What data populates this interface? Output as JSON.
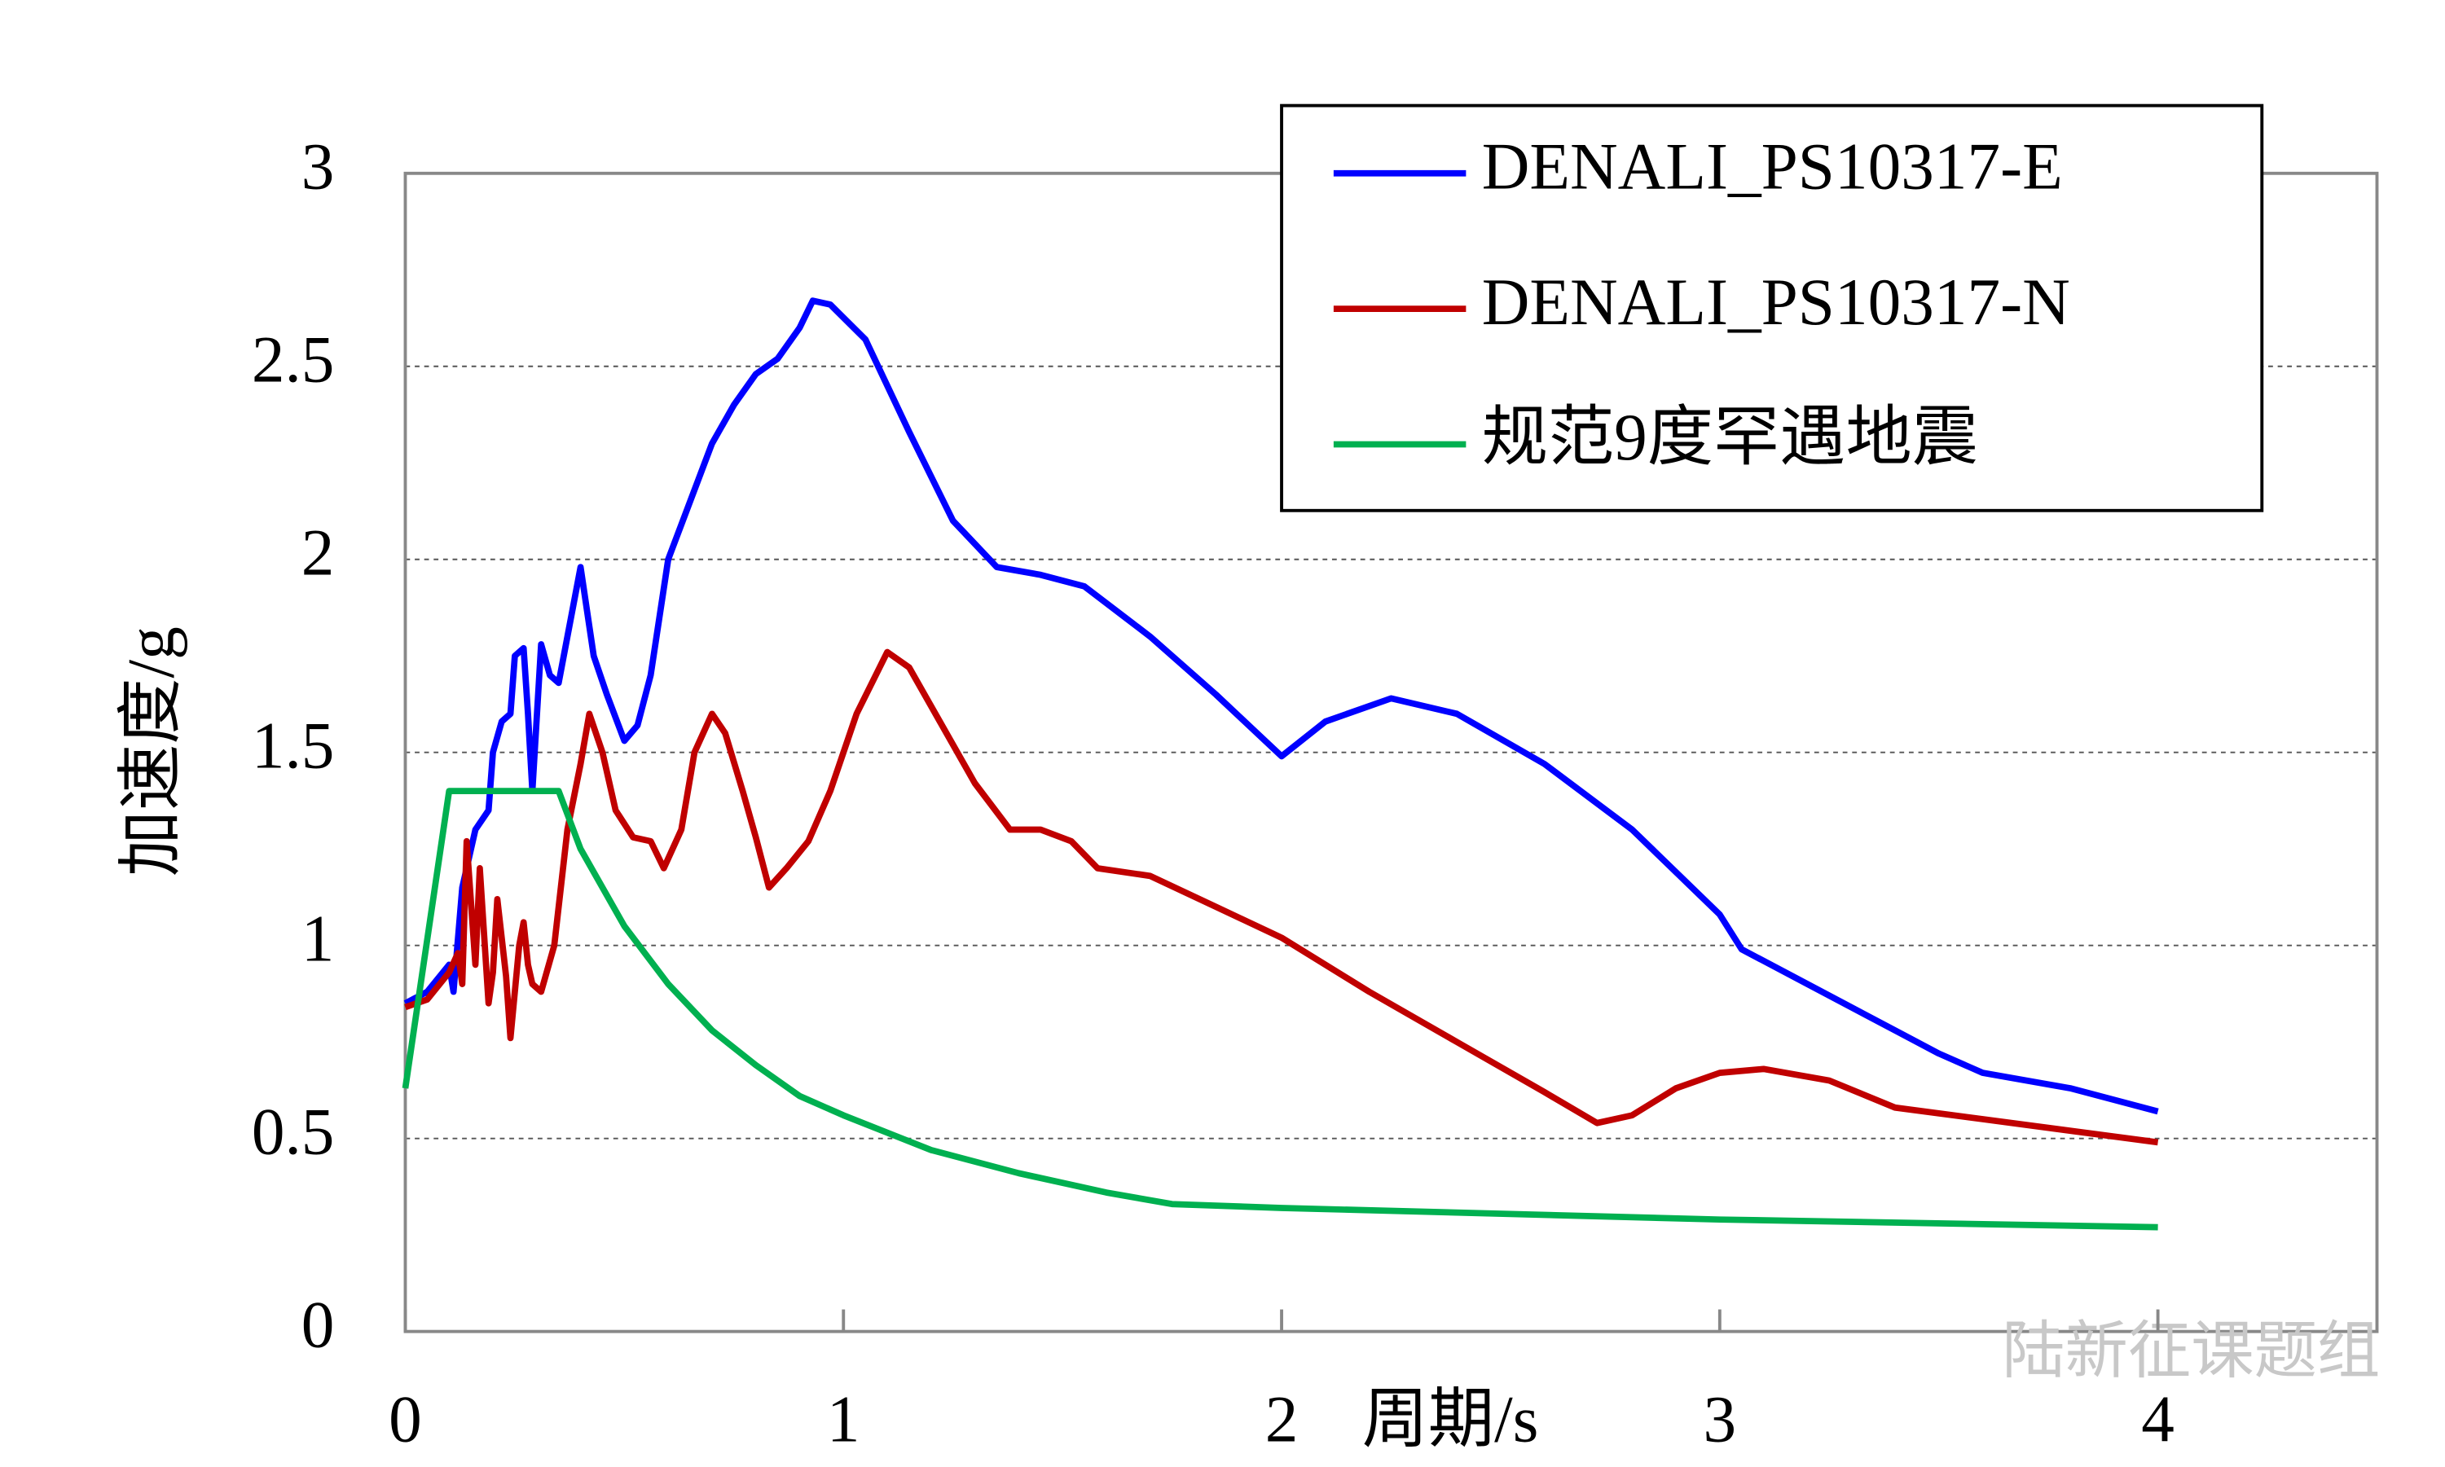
{
  "chart_data": {
    "type": "line",
    "x_label": "周期/s",
    "y_label": "加速度/g",
    "watermark": "陆新征课题组",
    "xlim": [
      0,
      4.5
    ],
    "ylim": [
      0,
      3
    ],
    "xticks": [
      0,
      1,
      2,
      3,
      4
    ],
    "yticks": [
      0,
      0.5,
      1,
      1.5,
      2,
      2.5,
      3
    ],
    "grid": true,
    "legend": "upper right",
    "series": [
      {
        "name": "DENALI_PS10317-E",
        "color": "#0000ff",
        "x": [
          0,
          0.05,
          0.1,
          0.11,
          0.13,
          0.16,
          0.19,
          0.2,
          0.22,
          0.24,
          0.25,
          0.27,
          0.28,
          0.29,
          0.31,
          0.33,
          0.35,
          0.37,
          0.4,
          0.43,
          0.46,
          0.5,
          0.53,
          0.56,
          0.6,
          0.65,
          0.7,
          0.75,
          0.8,
          0.85,
          0.9,
          0.93,
          0.97,
          1.05,
          1.15,
          1.25,
          1.35,
          1.45,
          1.55,
          1.7,
          1.85,
          2.0,
          2.1,
          2.25,
          2.4,
          2.6,
          2.8,
          3.0,
          3.05,
          3.2,
          3.5,
          3.6,
          3.8,
          4.0
        ],
        "values": [
          0.85,
          0.88,
          0.95,
          0.88,
          1.15,
          1.3,
          1.35,
          1.5,
          1.58,
          1.6,
          1.75,
          1.77,
          1.6,
          1.4,
          1.78,
          1.7,
          1.68,
          1.8,
          1.98,
          1.75,
          1.65,
          1.53,
          1.57,
          1.7,
          2.0,
          2.15,
          2.3,
          2.4,
          2.48,
          2.52,
          2.6,
          2.67,
          2.66,
          2.57,
          2.33,
          2.1,
          1.98,
          1.96,
          1.93,
          1.8,
          1.65,
          1.49,
          1.58,
          1.64,
          1.6,
          1.47,
          1.3,
          1.08,
          0.99,
          0.9,
          0.72,
          0.67,
          0.63,
          0.57
        ]
      },
      {
        "name": "DENALI_PS10317-N",
        "color": "#c00000",
        "x": [
          0,
          0.05,
          0.1,
          0.12,
          0.13,
          0.14,
          0.16,
          0.17,
          0.19,
          0.2,
          0.21,
          0.23,
          0.24,
          0.26,
          0.27,
          0.28,
          0.29,
          0.31,
          0.34,
          0.37,
          0.4,
          0.42,
          0.45,
          0.48,
          0.52,
          0.56,
          0.59,
          0.63,
          0.66,
          0.7,
          0.73,
          0.77,
          0.8,
          0.83,
          0.87,
          0.92,
          0.97,
          1.03,
          1.1,
          1.15,
          1.22,
          1.3,
          1.38,
          1.45,
          1.52,
          1.58,
          1.7,
          1.85,
          2.0,
          2.2,
          2.4,
          2.6,
          2.72,
          2.8,
          2.9,
          3.0,
          3.1,
          3.25,
          3.4,
          3.6,
          4.0
        ],
        "values": [
          0.84,
          0.86,
          0.93,
          0.98,
          0.9,
          1.27,
          0.95,
          1.2,
          0.85,
          0.93,
          1.12,
          0.92,
          0.76,
          1.0,
          1.06,
          0.95,
          0.9,
          0.88,
          1.0,
          1.3,
          1.47,
          1.6,
          1.5,
          1.35,
          1.28,
          1.27,
          1.2,
          1.3,
          1.5,
          1.6,
          1.55,
          1.4,
          1.28,
          1.15,
          1.2,
          1.27,
          1.4,
          1.6,
          1.76,
          1.72,
          1.58,
          1.42,
          1.3,
          1.3,
          1.27,
          1.2,
          1.18,
          1.1,
          1.02,
          0.88,
          0.75,
          0.62,
          0.54,
          0.56,
          0.63,
          0.67,
          0.68,
          0.65,
          0.58,
          0.55,
          0.49
        ]
      },
      {
        "name": "规范9度罕遇地震",
        "color": "#00b050",
        "x": [
          0,
          0.1,
          0.35,
          0.4,
          0.5,
          0.6,
          0.7,
          0.8,
          0.9,
          1.0,
          1.2,
          1.4,
          1.6,
          1.75,
          2.0,
          3.0,
          4.0
        ],
        "values": [
          0.63,
          1.4,
          1.4,
          1.25,
          1.05,
          0.9,
          0.78,
          0.69,
          0.61,
          0.56,
          0.47,
          0.41,
          0.36,
          0.33,
          0.32,
          0.29,
          0.27
        ]
      }
    ]
  }
}
